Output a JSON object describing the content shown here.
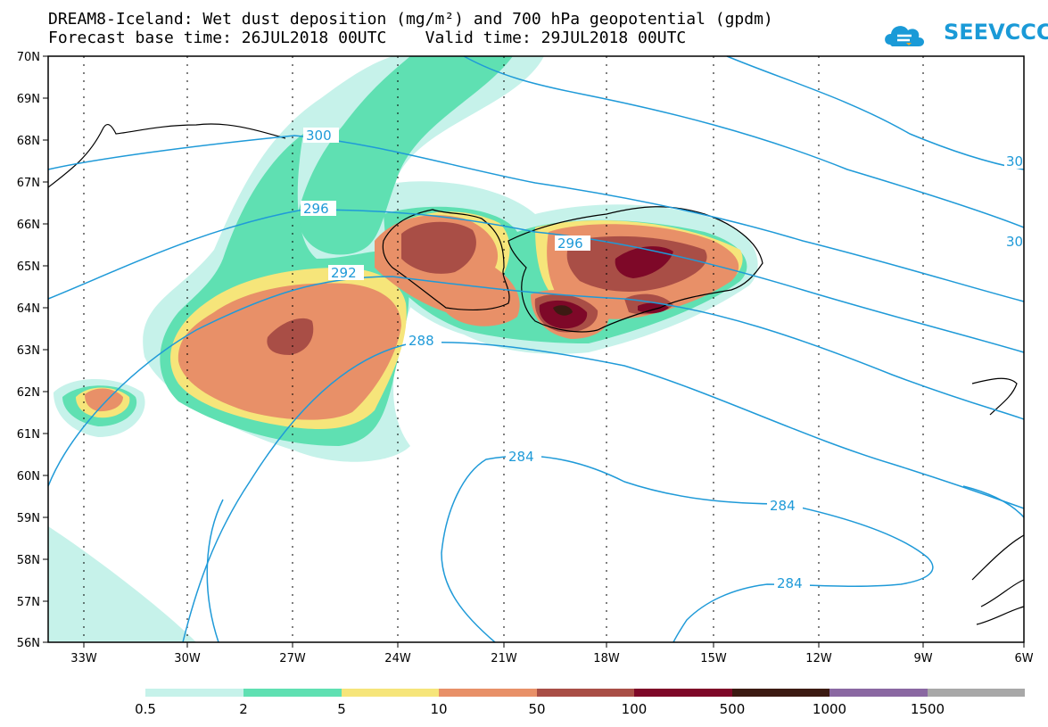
{
  "header": {
    "title_line1": "DREAM8-Iceland: Wet dust deposition (mg/m²) and 700 hPa geopotential (gpdm)",
    "title_line2": "Forecast base time: 26JUL2018 00UTC    Valid time: 29JUL2018 00UTC"
  },
  "logo": {
    "text": "SEEVCCC",
    "icon": "cloud-icon",
    "color": "#1a9ad7"
  },
  "axes": {
    "lon_labels": [
      "33W",
      "30W",
      "27W",
      "24W",
      "21W",
      "18W",
      "15W",
      "12W",
      "9W",
      "6W"
    ],
    "lat_labels": [
      "70N",
      "69N",
      "68N",
      "67N",
      "66N",
      "65N",
      "64N",
      "63N",
      "62N",
      "61N",
      "60N",
      "59N",
      "58N",
      "57N",
      "56N"
    ]
  },
  "contour_labels": [
    "300",
    "296",
    "292",
    "288",
    "284",
    "284",
    "284",
    "296",
    "30",
    "30"
  ],
  "legend": {
    "colors": [
      "#c6f2ea",
      "#5fe0b2",
      "#f6e57a",
      "#e89068",
      "#a94e46",
      "#7e0828",
      "#3c1a12",
      "#8a68a2",
      "#a8a8a8"
    ],
    "labels": [
      "0.5",
      "2",
      "5",
      "10",
      "50",
      "100",
      "500",
      "1000",
      "1500"
    ]
  }
}
